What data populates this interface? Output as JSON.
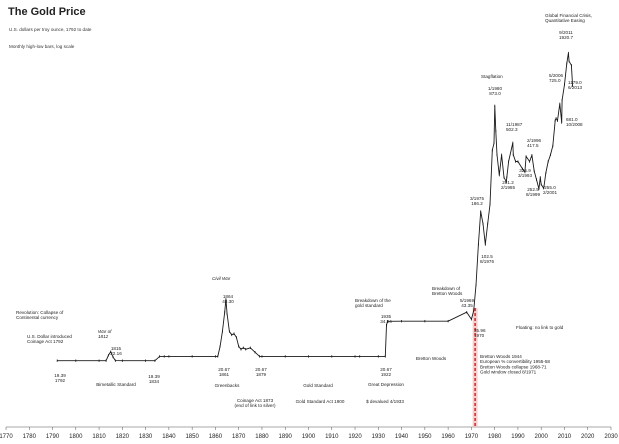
{
  "chart_data": {
    "type": "line",
    "title": "The Gold Price",
    "subtitle": "U.S. dollars per troy ounce, 1792 to date",
    "note": "Monthly high-low bars, log scale",
    "x_ticks": [
      "1770",
      "1780",
      "1790",
      "1800",
      "1810",
      "1820",
      "1830",
      "1840",
      "1850",
      "1860",
      "1870",
      "1880",
      "1890",
      "1900",
      "1910",
      "1920",
      "1930",
      "1940",
      "1950",
      "1960",
      "1970",
      "1980",
      "1990",
      "2000",
      "2010",
      "2020",
      "2030"
    ],
    "xlim": [
      1770,
      2030
    ],
    "ylim": [
      10,
      2200
    ],
    "y_scale": "log",
    "grid": false,
    "series": [
      {
        "x": [
          1792,
          1800,
          1810,
          1813,
          1814,
          1815,
          1816,
          1817,
          1820,
          1830,
          1834,
          1836,
          1838,
          1840,
          1850,
          1860,
          1861,
          1862,
          1863,
          1864,
          1864.5,
          1865,
          1866,
          1867,
          1868,
          1869,
          1870,
          1871,
          1872,
          1873,
          1875,
          1877,
          1879,
          1880,
          1890,
          1900,
          1910,
          1920,
          1922,
          1930,
          1933,
          1933.5,
          1934,
          1940,
          1950,
          1960,
          1968,
          1970,
          1971,
          1972,
          1973,
          1974,
          1975,
          1976,
          1977,
          1978,
          1979,
          1979.7,
          1980.05,
          1980.5,
          1981,
          1982,
          1983,
          1984,
          1985,
          1985.2,
          1986,
          1987.8,
          1988,
          1989,
          1990,
          1992,
          1993,
          1993.5,
          1995,
          1996,
          1997,
          1998,
          1999,
          1999.6,
          2000,
          2001,
          2001.2,
          2002,
          2003,
          2004,
          2005,
          2006,
          2006.4,
          2007,
          2008,
          2008.8,
          2009,
          2010,
          2011,
          2011.7,
          2012,
          2013,
          2013.5
        ],
        "y": [
          19.39,
          19.39,
          19.39,
          19.39,
          21.0,
          22.16,
          20.5,
          19.4,
          19.39,
          19.39,
          19.39,
          20.67,
          20.67,
          20.67,
          20.67,
          20.67,
          20.67,
          24.0,
          30.0,
          40.0,
          48.5,
          39.0,
          30.0,
          28.5,
          29.0,
          27.5,
          24.0,
          23.0,
          23.5,
          23.0,
          23.5,
          22.0,
          20.67,
          20.67,
          20.67,
          20.67,
          20.67,
          20.67,
          20.67,
          20.67,
          20.67,
          33.0,
          34.94,
          35.0,
          35.0,
          35.0,
          40.0,
          36.0,
          40.9,
          60.0,
          110.0,
          180.0,
          150.0,
          110.0,
          150.0,
          200.0,
          450.0,
          500.0,
          873.0,
          600.0,
          420.0,
          310.0,
          420.0,
          300.0,
          281.2,
          300.0,
          380.0,
          502.3,
          420.0,
          380.0,
          380.0,
          340.0,
          325.0,
          410.0,
          380.0,
          417.5,
          330.0,
          290.0,
          252.5,
          300.0,
          270.0,
          255.0,
          262.0,
          320.0,
          380.0,
          420.0,
          480.0,
          700.0,
          725.0,
          700.0,
          900.0,
          681.0,
          950.0,
          1200.0,
          1650.0,
          1920.7,
          1700.0,
          1600.0,
          1179.0
        ]
      }
    ],
    "annotations": [
      {
        "lines": [
          "Revolution: Collapse of",
          "Continental currency"
        ]
      },
      {
        "lines": [
          "U.S. Dollar introduced",
          "Coinage Act 1792"
        ]
      },
      {
        "lines": [
          "War of",
          "1812"
        ]
      },
      {
        "lines": [
          "1815",
          "22.16"
        ]
      },
      {
        "lines": [
          "19.39",
          "1792"
        ]
      },
      {
        "lines": [
          "19.39",
          "1834"
        ]
      },
      {
        "lines": [
          "Bimetallic Standard"
        ]
      },
      {
        "lines": [
          "Civil War"
        ]
      },
      {
        "lines": [
          "1864",
          "48.30"
        ]
      },
      {
        "lines": [
          "20.67",
          "1861"
        ]
      },
      {
        "lines": [
          "20.67",
          "1879"
        ]
      },
      {
        "lines": [
          "Greenbacks"
        ]
      },
      {
        "lines": [
          "Coinage Act 1873",
          "(end of link to silver)"
        ]
      },
      {
        "lines": [
          "Gold Standard"
        ]
      },
      {
        "lines": [
          "Gold Standard Act 1900"
        ]
      },
      {
        "lines": [
          "Breakdown of the",
          "gold standard"
        ]
      },
      {
        "lines": [
          "1935",
          "34.94"
        ]
      },
      {
        "lines": [
          "20.67",
          "1922"
        ]
      },
      {
        "lines": [
          "Great Depression"
        ]
      },
      {
        "lines": [
          "$ devalued 4/1933"
        ]
      },
      {
        "lines": [
          "Breakdown of",
          "Bretton Woods"
        ]
      },
      {
        "lines": [
          "5/1969",
          "43.35"
        ]
      },
      {
        "lines": [
          "35.96",
          "1970"
        ]
      },
      {
        "lines": [
          "Bretton Woods"
        ]
      },
      {
        "lines": [
          "Bretton Woods 1944",
          "European % convertibility 1955-58",
          "Bretton Woods collapse 1968-71",
          "Gold window closed 8/1971"
        ]
      },
      {
        "lines": [
          "Floating: no link to gold"
        ]
      },
      {
        "lines": [
          "Stagflation"
        ]
      },
      {
        "lines": [
          "1/1980",
          "873.0"
        ]
      },
      {
        "lines": [
          "3/1975",
          "186.2"
        ]
      },
      {
        "lines": [
          "102.5",
          "8/1976"
        ]
      },
      {
        "lines": [
          "281.2",
          "2/1985"
        ]
      },
      {
        "lines": [
          "11/1987",
          "502.3"
        ]
      },
      {
        "lines": [
          "325.9",
          "3/1993"
        ]
      },
      {
        "lines": [
          "2/1996",
          "417.5"
        ]
      },
      {
        "lines": [
          "252.5",
          "8/1999"
        ]
      },
      {
        "lines": [
          "255.0",
          "2/2001"
        ]
      },
      {
        "lines": [
          "5/2006",
          "725.0"
        ]
      },
      {
        "lines": [
          "681.0",
          "10/2008"
        ]
      },
      {
        "lines": [
          "Global Financial Crisis,",
          "Quantitative Easing"
        ]
      },
      {
        "lines": [
          "9/2011",
          "1920.7"
        ]
      },
      {
        "lines": [
          "1179.0",
          "6/2013"
        ]
      }
    ]
  }
}
